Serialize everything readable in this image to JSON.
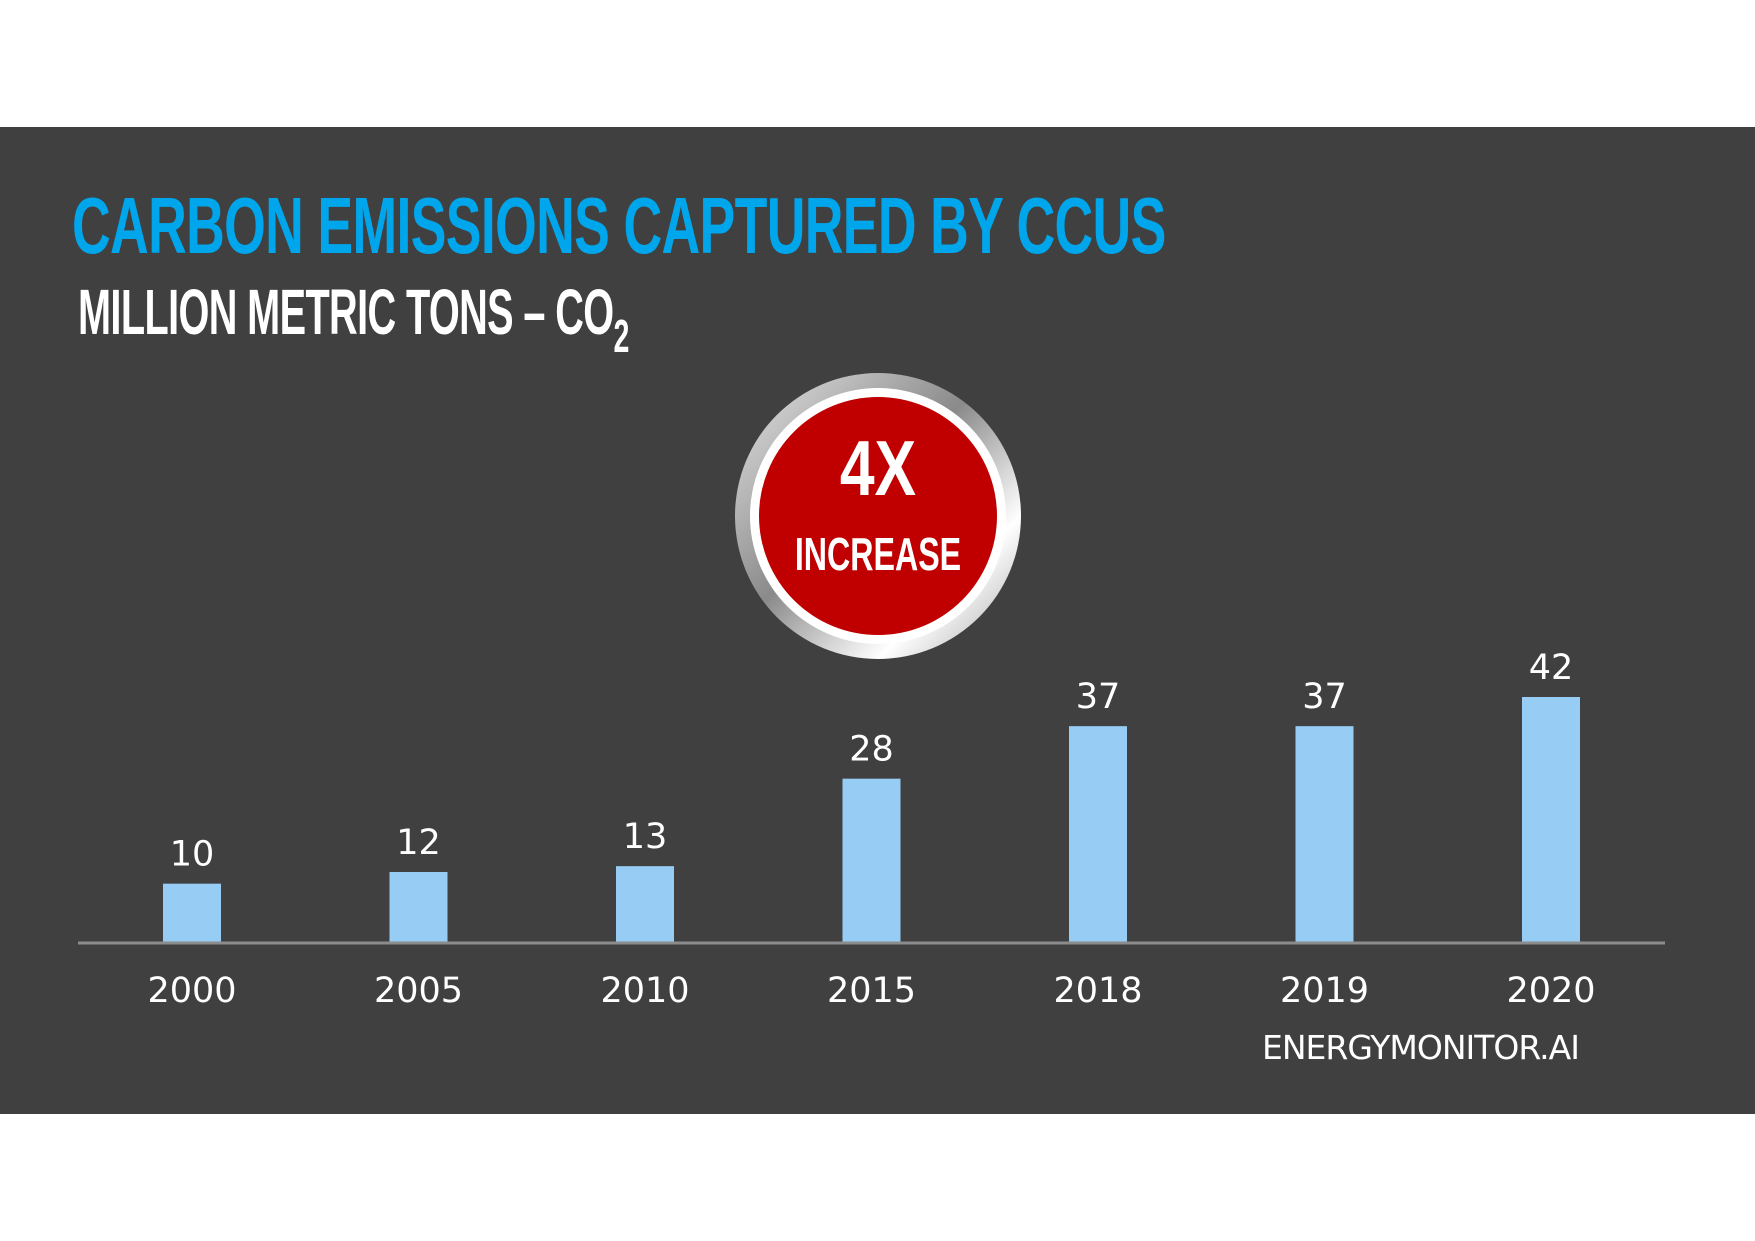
{
  "chart_data": {
    "type": "bar",
    "title": "CARBON EMISSIONS CAPTURED BY CCUS",
    "subtitle": "MILLION METRIC TONS – CO",
    "subtitle_subscript": "2",
    "categories": [
      "2000",
      "2005",
      "2010",
      "2015",
      "2018",
      "2019",
      "2020"
    ],
    "values": [
      10,
      12,
      13,
      28,
      37,
      37,
      42
    ],
    "data_labels": [
      "10",
      "12",
      "13",
      "28",
      "37",
      "37",
      "42"
    ],
    "xlabel": "",
    "ylabel": "",
    "ylim": [
      0,
      42
    ],
    "grid": false,
    "legend": "none"
  },
  "badge": {
    "big": "4X",
    "small": "INCREASE",
    "fill_color": "#c00000"
  },
  "source": "ENERGYMONITOR.AI",
  "colors": {
    "background": "#404040",
    "title": "#00a6ec",
    "bar": "#97cdf5",
    "axis": "#8c8c8c",
    "text": "#ffffff"
  }
}
